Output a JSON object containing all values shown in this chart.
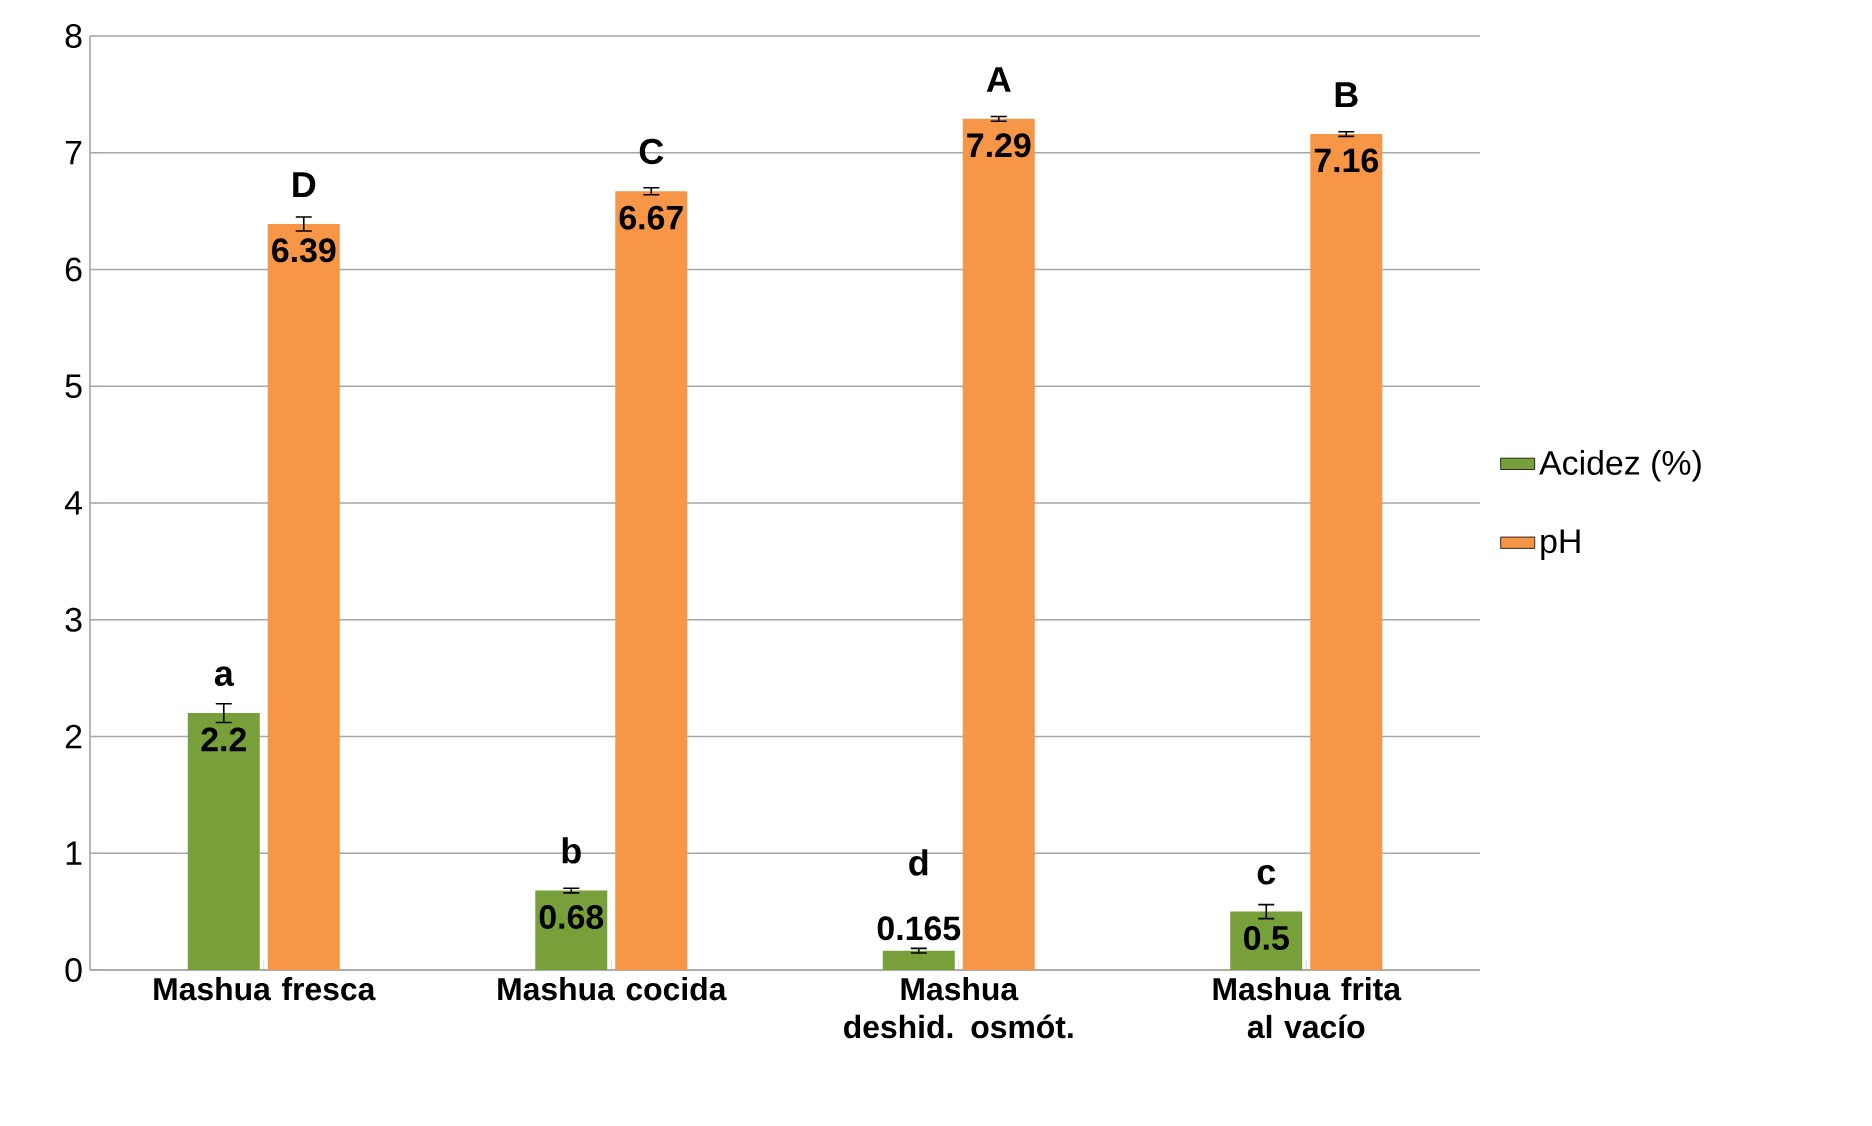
{
  "chart_data": {
    "type": "bar",
    "categories": [
      "Mashua fresca",
      "Mashua cocida",
      "Mashua deshid. osmót.",
      "Mashua frita al vacío"
    ],
    "series": [
      {
        "name": "Acidez (%)",
        "color": "#77a03a",
        "values": [
          2.2,
          0.68,
          0.165,
          0.5
        ],
        "errors": [
          0.08,
          0.02,
          0.02,
          0.06
        ]
      },
      {
        "name": "pH",
        "color": "#f79646",
        "values": [
          6.39,
          6.67,
          7.29,
          7.16
        ],
        "errors": [
          0.06,
          0.03,
          0.02,
          0.02
        ]
      }
    ],
    "ylim": [
      0,
      8
    ],
    "yticks": [
      0,
      1,
      2,
      3,
      4,
      5,
      6,
      7,
      8
    ],
    "grid": "y",
    "legend": "right",
    "data_labels": true,
    "annotations": [
      {
        "text": "a",
        "x": "Mashua fresca",
        "y": 2.2
      },
      {
        "text": "D",
        "x": "Mashua fresca",
        "y": 6.39
      },
      {
        "text": "b",
        "x": "Mashua cocida",
        "y": 0.68
      },
      {
        "text": "C",
        "x": "Mashua cocida",
        "y": 6.67
      },
      {
        "text": "d",
        "x": "Mashua deshid. osmót.",
        "y": 0.165
      },
      {
        "text": "A",
        "x": "Mashua deshid. osmót.",
        "y": 7.29
      },
      {
        "text": "c",
        "x": "Mashua frita al vacío",
        "y": 0.5
      },
      {
        "text": "B",
        "x": "Mashua frita al vacío",
        "y": 7.16
      }
    ]
  }
}
